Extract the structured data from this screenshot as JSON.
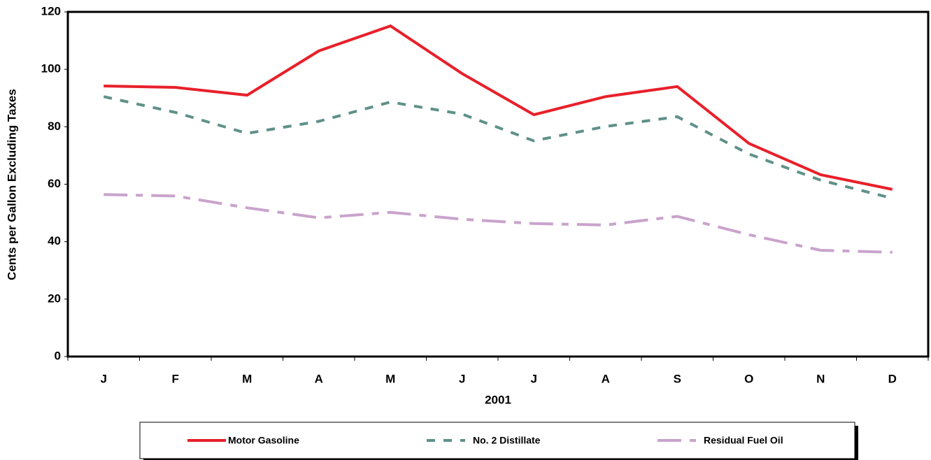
{
  "chart_data": {
    "type": "line",
    "ylabel": "Cents per Gallon Excluding Taxes",
    "xlabel": "2001",
    "categories": [
      "J",
      "F",
      "M",
      "A",
      "M",
      "J",
      "J",
      "A",
      "S",
      "O",
      "N",
      "D"
    ],
    "series": [
      {
        "name": "Motor Gasoline",
        "color": "#e8202a",
        "dash": "solid",
        "values": [
          94.2,
          93.7,
          91.0,
          106.4,
          115.1,
          98.5,
          84.2,
          90.5,
          94.0,
          74.2,
          63.3,
          58.2
        ]
      },
      {
        "name": "No. 2 Distillate",
        "color": "#5f9189",
        "dash": "dashed",
        "values": [
          90.5,
          85.0,
          77.7,
          81.9,
          88.6,
          84.4,
          75.1,
          80.1,
          83.5,
          70.5,
          61.4,
          55.1
        ]
      },
      {
        "name": "Residual Fuel Oil",
        "color": "#c9a3cc",
        "dash": "dashdot",
        "values": [
          56.4,
          55.9,
          51.8,
          48.3,
          50.2,
          47.8,
          46.3,
          45.8,
          48.8,
          42.4,
          37.0,
          36.3
        ]
      }
    ],
    "ylim": [
      0,
      120
    ],
    "yticks": [
      0,
      20,
      40,
      60,
      80,
      100,
      120
    ],
    "grid": false
  }
}
